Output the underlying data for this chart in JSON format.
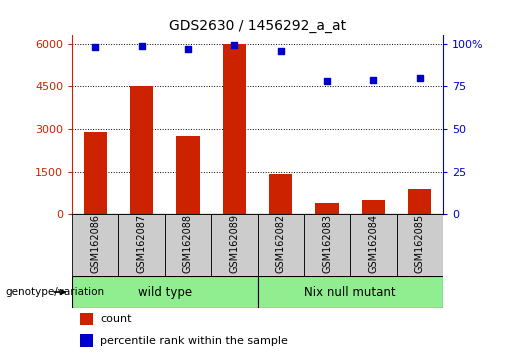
{
  "title": "GDS2630 / 1456292_a_at",
  "categories": [
    "GSM162086",
    "GSM162087",
    "GSM162088",
    "GSM162089",
    "GSM162082",
    "GSM162083",
    "GSM162084",
    "GSM162085"
  ],
  "counts": [
    2900,
    4500,
    2750,
    6000,
    1400,
    400,
    500,
    900
  ],
  "percentiles": [
    98,
    98.5,
    97,
    99.5,
    96,
    78,
    79,
    80
  ],
  "bar_color": "#cc2200",
  "dot_color": "#0000cc",
  "left_yticks": [
    0,
    1500,
    3000,
    4500,
    6000
  ],
  "left_ylim": [
    0,
    6300
  ],
  "right_yticks": [
    0,
    25,
    50,
    75,
    100
  ],
  "right_ylim": [
    0,
    105
  ],
  "wild_type_indices": [
    0,
    1,
    2,
    3
  ],
  "nix_null_indices": [
    4,
    5,
    6,
    7
  ],
  "wild_type_label": "wild type",
  "nix_null_label": "Nix null mutant",
  "genotype_label": "genotype/variation",
  "count_label": "count",
  "percentile_label": "percentile rank within the sample",
  "group_bg_color": "#90EE90",
  "tick_area_color": "#cccccc",
  "left_tick_color": "#cc2200",
  "right_tick_color": "#0000cc"
}
